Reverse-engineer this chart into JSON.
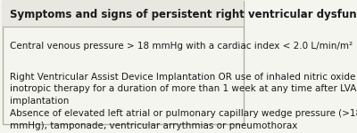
{
  "background_color": "#f5f5f0",
  "header_bg_color": "#e8e8e0",
  "border_color": "#b0b0a0",
  "header_text": "Symptoms and signs of persistent right ventricular dysfunction",
  "rows": [
    "Central venous pressure > 18 mmHg with a cardiac index < 2.0 L/min/m²",
    "Right Ventricular Assist Device Implantation OR use of inhaled nitric oxide or\ninotropic therapy for a duration of more than 1 week at any time after LVAD\nimplantation",
    "Absence of elevated left atrial or pulmonary capillary wedge pressure (>18\nmmHg), tamponade, ventricular arrythmias or pneumothorax"
  ],
  "header_fontsize": 8.5,
  "row_fontsize": 7.5,
  "header_font_weight": "bold",
  "text_color": "#1a1a1a",
  "figsize": [
    4.0,
    1.5
  ],
  "dpi": 100
}
